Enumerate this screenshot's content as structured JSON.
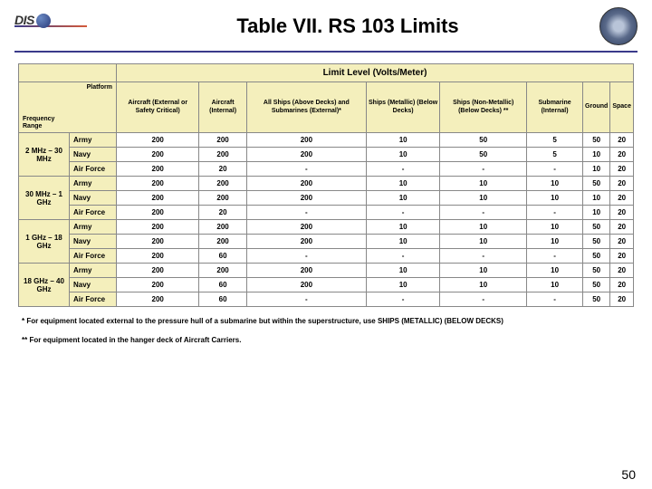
{
  "header": {
    "logo_text": "DIS",
    "title": "Table VII.  RS 103 Limits"
  },
  "banner": "Limit Level (Volts/Meter)",
  "corner": {
    "platform": "Platform",
    "freq": "Frequency\nRange"
  },
  "columns": [
    "Aircraft (External or Safety Critical)",
    "Aircraft (Internal)",
    "All Ships (Above Decks) and Submarines (External)*",
    "Ships (Metallic) (Below Decks)",
    "Ships (Non-Metallic) (Below Decks) **",
    "Submarine (Internal)",
    "Ground",
    "Space"
  ],
  "groups": [
    {
      "range": "2 MHz – 30 MHz",
      "rows": [
        {
          "platform": "Army",
          "cells": [
            "200",
            "200",
            "200",
            "10",
            "50",
            "5",
            "50",
            "20"
          ]
        },
        {
          "platform": "Navy",
          "cells": [
            "200",
            "200",
            "200",
            "10",
            "50",
            "5",
            "10",
            "20"
          ]
        },
        {
          "platform": "Air Force",
          "cells": [
            "200",
            "20",
            "-",
            "-",
            "-",
            "-",
            "10",
            "20"
          ]
        }
      ]
    },
    {
      "range": "30 MHz – 1 GHz",
      "rows": [
        {
          "platform": "Army",
          "cells": [
            "200",
            "200",
            "200",
            "10",
            "10",
            "10",
            "50",
            "20"
          ]
        },
        {
          "platform": "Navy",
          "cells": [
            "200",
            "200",
            "200",
            "10",
            "10",
            "10",
            "10",
            "20"
          ]
        },
        {
          "platform": "Air Force",
          "cells": [
            "200",
            "20",
            "-",
            "-",
            "-",
            "-",
            "10",
            "20"
          ]
        }
      ]
    },
    {
      "range": "1 GHz – 18 GHz",
      "rows": [
        {
          "platform": "Army",
          "cells": [
            "200",
            "200",
            "200",
            "10",
            "10",
            "10",
            "50",
            "20"
          ]
        },
        {
          "platform": "Navy",
          "cells": [
            "200",
            "200",
            "200",
            "10",
            "10",
            "10",
            "50",
            "20"
          ]
        },
        {
          "platform": "Air Force",
          "cells": [
            "200",
            "60",
            "-",
            "-",
            "-",
            "-",
            "50",
            "20"
          ]
        }
      ]
    },
    {
      "range": "18 GHz – 40 GHz",
      "rows": [
        {
          "platform": "Army",
          "cells": [
            "200",
            "200",
            "200",
            "10",
            "10",
            "10",
            "50",
            "20"
          ]
        },
        {
          "platform": "Navy",
          "cells": [
            "200",
            "60",
            "200",
            "10",
            "10",
            "10",
            "50",
            "20"
          ]
        },
        {
          "platform": "Air Force",
          "cells": [
            "200",
            "60",
            "-",
            "-",
            "-",
            "-",
            "50",
            "20"
          ]
        }
      ]
    }
  ],
  "footnotes": [
    "* For equipment located external to the pressure hull of a submarine but within the superstructure, use SHIPS (METALLIC) (BELOW DECKS)",
    "** For equipment located in the hanger deck of Aircraft Carriers."
  ],
  "pagenum": "50",
  "styling": {
    "header_bg": "#f4efbc",
    "border_color": "#888888",
    "title_fontsize": 22,
    "cell_fontsize": 8,
    "banner_fontsize": 10
  }
}
